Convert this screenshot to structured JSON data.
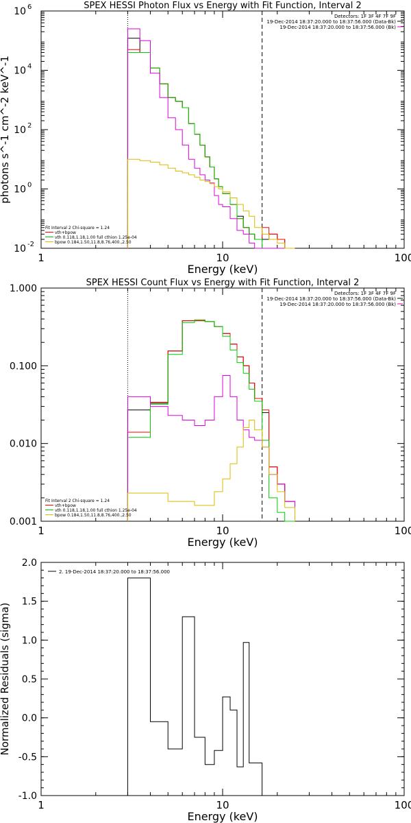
{
  "chart_data": [
    {
      "type": "line",
      "step": true,
      "title": "SPEX HESSI Photon Flux vs Energy with Fit Function, Interval 2",
      "xlabel": "Energy (keV)",
      "ylabel": "photons s^-1 cm^-2 keV^-1",
      "xscale": "log",
      "yscale": "log",
      "xlim": [
        1,
        100
      ],
      "ylim": [
        0.01,
        1000000
      ],
      "yticks": [
        {
          "value": 0.01,
          "base": "10",
          "exp": "-2"
        },
        {
          "value": 1,
          "base": "10",
          "exp": "0"
        },
        {
          "value": 100,
          "base": "10",
          "exp": "2"
        },
        {
          "value": 10000,
          "base": "10",
          "exp": "4"
        },
        {
          "value": 1000000,
          "base": "10",
          "exp": "6"
        }
      ],
      "xticks": [
        {
          "value": 1,
          "label": "1"
        },
        {
          "value": 10,
          "label": "10"
        },
        {
          "value": 100,
          "label": "100"
        }
      ],
      "vlines": [
        {
          "x": 3.0,
          "style": "dotted"
        },
        {
          "x": 16.5,
          "style": "dashed"
        }
      ],
      "edges": [
        3.0,
        3.5,
        4.0,
        4.5,
        5.0,
        5.5,
        6.0,
        6.5,
        7.0,
        7.5,
        8.0,
        8.5,
        9.0,
        9.5,
        10.0,
        11.0,
        12.0,
        13.0,
        14.0,
        15.0,
        16.5,
        18.0,
        20.0,
        22.0,
        25.0
      ],
      "series": [
        {
          "key": "data",
          "color": "#000000",
          "values": [
            120000,
            40000,
            12000,
            3500,
            1200,
            900,
            550,
            160,
            70,
            30,
            12,
            5.5,
            2.2,
            1.2,
            0.7,
            0.3,
            0.12,
            0.05,
            0.03,
            0.02,
            0.02,
            0.03,
            0.02,
            0.01
          ]
        },
        {
          "key": "fit",
          "color": "#ff0000",
          "values": [
            50000,
            40000,
            12000,
            3500,
            1200,
            900,
            550,
            160,
            70,
            30,
            12,
            5.5,
            2.2,
            1.2,
            0.7,
            0.3,
            0.1,
            0.05,
            0.03,
            0.02,
            0.05,
            0.03,
            0.02,
            0.01
          ]
        },
        {
          "key": "vth",
          "color": "#00cc00",
          "values": [
            40000,
            40000,
            12000,
            3500,
            1200,
            900,
            550,
            160,
            70,
            30,
            12,
            5.5,
            2.2,
            1.2,
            0.7,
            0.3,
            0.1,
            0.05,
            0.03,
            0.02,
            0.01,
            0.01,
            0.01,
            0.01
          ]
        },
        {
          "key": "bk",
          "color": "#dd00dd",
          "values": [
            250000,
            100000,
            8000,
            1200,
            250,
            100,
            30,
            10,
            5,
            3,
            2,
            1.6,
            0.6,
            0.3,
            0.25,
            0.1,
            0.04,
            0.03,
            0.015,
            0.01,
            0.01,
            0.01,
            0.01,
            0.01
          ]
        },
        {
          "key": "bpow",
          "color": "#ddbb00",
          "values": [
            10,
            9,
            8,
            6.5,
            5,
            4,
            3.5,
            3,
            2.5,
            2,
            1.8,
            1.5,
            1.2,
            1,
            0.8,
            0.5,
            0.3,
            0.18,
            0.12,
            0.05,
            0.03,
            0.02,
            0.015,
            0.01
          ]
        }
      ]
    },
    {
      "type": "line",
      "step": true,
      "title": "SPEX HESSI Count Flux vs Energy with Fit Function, Interval 2",
      "xlabel": "Energy (keV)",
      "ylabel": "",
      "xscale": "log",
      "yscale": "log",
      "xlim": [
        1,
        100
      ],
      "ylim": [
        0.001,
        1.0
      ],
      "yticks": [
        {
          "value": 0.001,
          "label": "0.001"
        },
        {
          "value": 0.01,
          "label": "0.010"
        },
        {
          "value": 0.1,
          "label": "0.100"
        },
        {
          "value": 1.0,
          "label": "1.000"
        }
      ],
      "xticks": [
        {
          "value": 1,
          "label": "1"
        },
        {
          "value": 10,
          "label": "10"
        },
        {
          "value": 100,
          "label": "100"
        }
      ],
      "vlines": [
        {
          "x": 3.0,
          "style": "dotted"
        },
        {
          "x": 16.5,
          "style": "dashed"
        }
      ],
      "edges": [
        3.0,
        4.0,
        5.0,
        6.0,
        7.0,
        8.0,
        9.0,
        10.0,
        11.0,
        12.0,
        13.0,
        14.0,
        15.0,
        16.5,
        18.0,
        20.0,
        22.0,
        25.0
      ],
      "series": [
        {
          "key": "data",
          "color": "#000000",
          "values": [
            0.027,
            0.033,
            0.155,
            0.38,
            0.38,
            0.37,
            0.32,
            0.26,
            0.19,
            0.13,
            0.1,
            0.06,
            0.038,
            0.025,
            0.005,
            0.003,
            0.0018
          ]
        },
        {
          "key": "fit",
          "color": "#ff0000",
          "values": [
            0.014,
            0.034,
            0.155,
            0.38,
            0.38,
            0.37,
            0.32,
            0.26,
            0.19,
            0.13,
            0.1,
            0.06,
            0.038,
            0.027,
            0.005,
            0.003,
            0.0018
          ]
        },
        {
          "key": "vth",
          "color": "#00cc00",
          "values": [
            0.012,
            0.032,
            0.14,
            0.36,
            0.39,
            0.37,
            0.32,
            0.24,
            0.16,
            0.11,
            0.08,
            0.05,
            0.035,
            0.011,
            0.002,
            0.0013,
            0.001
          ]
        },
        {
          "key": "bk",
          "color": "#dd00dd",
          "values": [
            0.04,
            0.03,
            0.023,
            0.02,
            0.017,
            0.02,
            0.04,
            0.075,
            0.04,
            0.02,
            0.015,
            0.012,
            0.011,
            0.009,
            0.004,
            0.003,
            0.0018
          ]
        },
        {
          "key": "bpow",
          "color": "#ddbb00",
          "values": [
            0.0023,
            0.0023,
            0.0018,
            0.0018,
            0.0016,
            0.0016,
            0.0024,
            0.0035,
            0.0055,
            0.009,
            0.016,
            0.02,
            0.015,
            0.009,
            0.004,
            0.0024,
            0.0015
          ]
        }
      ]
    },
    {
      "type": "line",
      "step": true,
      "title": "",
      "xlabel": "Energy (keV)",
      "ylabel": "Normalized Residuals (sigma)",
      "xscale": "log",
      "yscale": "linear",
      "xlim": [
        1,
        100
      ],
      "ylim": [
        -1.0,
        2.0
      ],
      "yticks": [
        {
          "value": -1.0,
          "label": "-1.0"
        },
        {
          "value": -0.5,
          "label": "-0.5"
        },
        {
          "value": 0.0,
          "label": "0.0"
        },
        {
          "value": 0.5,
          "label": "0.5"
        },
        {
          "value": 1.0,
          "label": "1.0"
        },
        {
          "value": 1.5,
          "label": "1.5"
        },
        {
          "value": 2.0,
          "label": "2.0"
        }
      ],
      "xticks": [
        {
          "value": 1,
          "label": "1"
        },
        {
          "value": 10,
          "label": "10"
        },
        {
          "value": 100,
          "label": "100"
        }
      ],
      "edges": [
        3.0,
        4.0,
        5.0,
        6.0,
        7.0,
        7.5,
        8.0,
        8.5,
        9.0,
        9.5,
        10.0,
        11.0,
        12.0,
        13.0,
        14.0,
        15.0,
        16.5
      ],
      "series": [
        {
          "key": "resid",
          "color": "#000000",
          "values": [
            1.8,
            -0.05,
            -0.4,
            1.3,
            -0.25,
            -0.25,
            -0.6,
            -0.6,
            -0.42,
            -0.42,
            0.27,
            0.1,
            -0.63,
            0.97,
            -0.58,
            -0.58
          ]
        }
      ]
    }
  ],
  "panels": [
    {
      "header": [
        "Detectors: 1F 3F 4F 7F 9F",
        "19-Dec-2014 18:37:20.000 to 18:37:56.000 (Data-Bk)",
        "19-Dec-2014 18:37:20.000 to 18:37:56.000 (Bk)"
      ],
      "legend": [
        "Fit Interval  2    Chi-square = 1.24",
        "vth+bpow",
        "vth 0.118,1.18,1.00  full cthion 1.25e-04",
        "bpow 0.184,1.50,11.8,8.76,400.,2.50"
      ]
    },
    {
      "header": [
        "Detectors: 1F 3F 4F 7F 9F",
        "19-Dec-2014 18:37:20.000 to 18:37:56.000 (Data-Bk)",
        "19-Dec-2014 18:37:20.000 to 18:37:56.000 (Bk)"
      ],
      "legend": [
        "Fit Interval  2    Chi-square = 1.24",
        "vth+bpow",
        "vth 0.118,1.18,1.00  full cthion 1.25e-04",
        "bpow 0.184,1.50,11.8,8.76,400.,2.50"
      ]
    },
    {
      "legend": [
        "2. 19-Dec-2014 18:37:20.000 to 18:37:56.000"
      ]
    }
  ]
}
